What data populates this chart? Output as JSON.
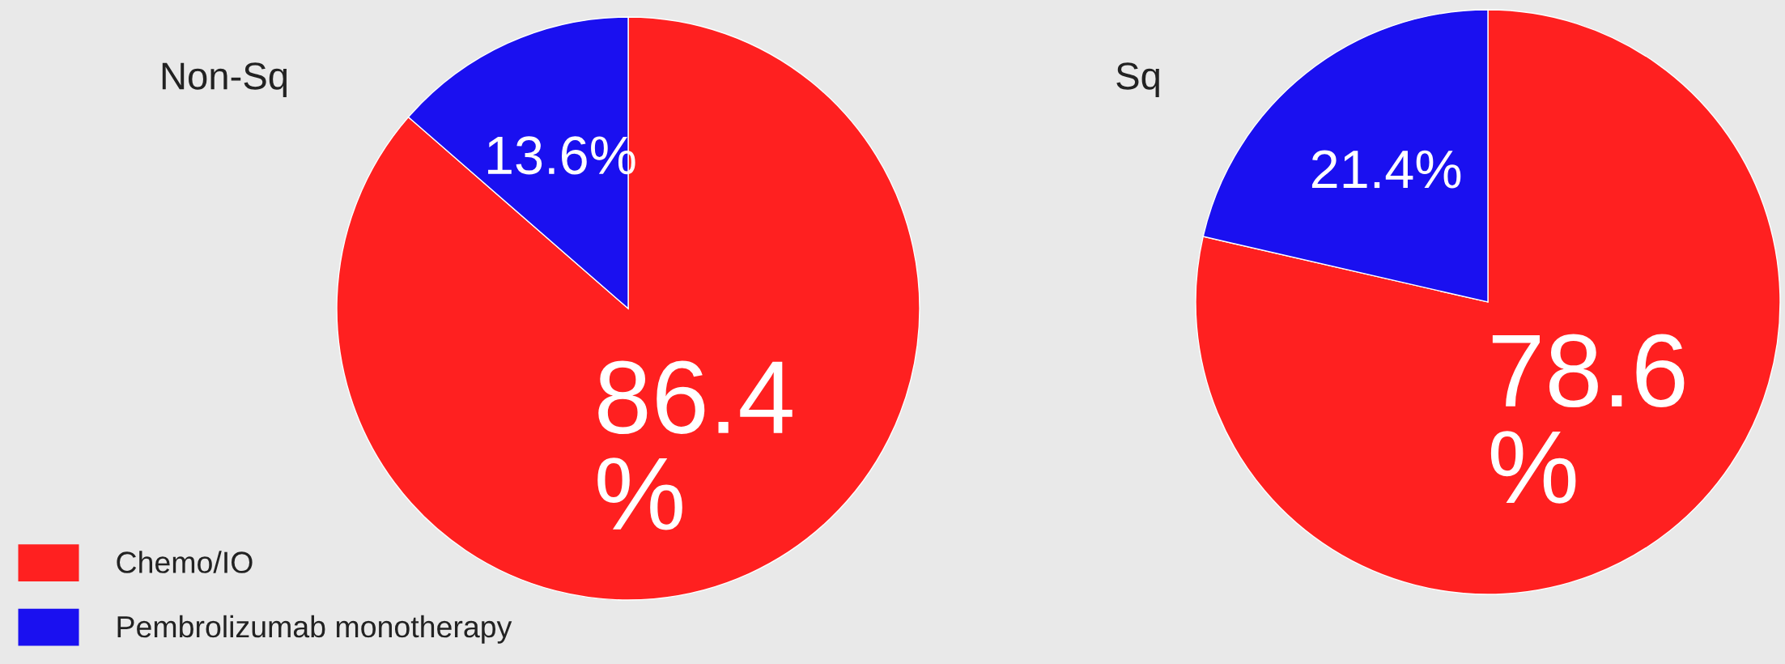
{
  "chart_data": [
    {
      "type": "pie",
      "title": "Non-Sq",
      "categories": [
        "Chemo/IO",
        "Pembrolizumab monotherapy"
      ],
      "values": [
        86.4,
        13.6
      ],
      "colors": [
        "#ff2020",
        "#1a10f0"
      ],
      "value_labels": [
        "86.4\n%",
        "13.6%"
      ],
      "legend": "bottom left"
    },
    {
      "type": "pie",
      "title": "Sq",
      "values": [
        78.6,
        21.4
      ],
      "colors": [
        "#ff2020",
        "#1a10f0"
      ],
      "value_labels": [
        "78.6\n%",
        "21.4%"
      ]
    }
  ]
}
